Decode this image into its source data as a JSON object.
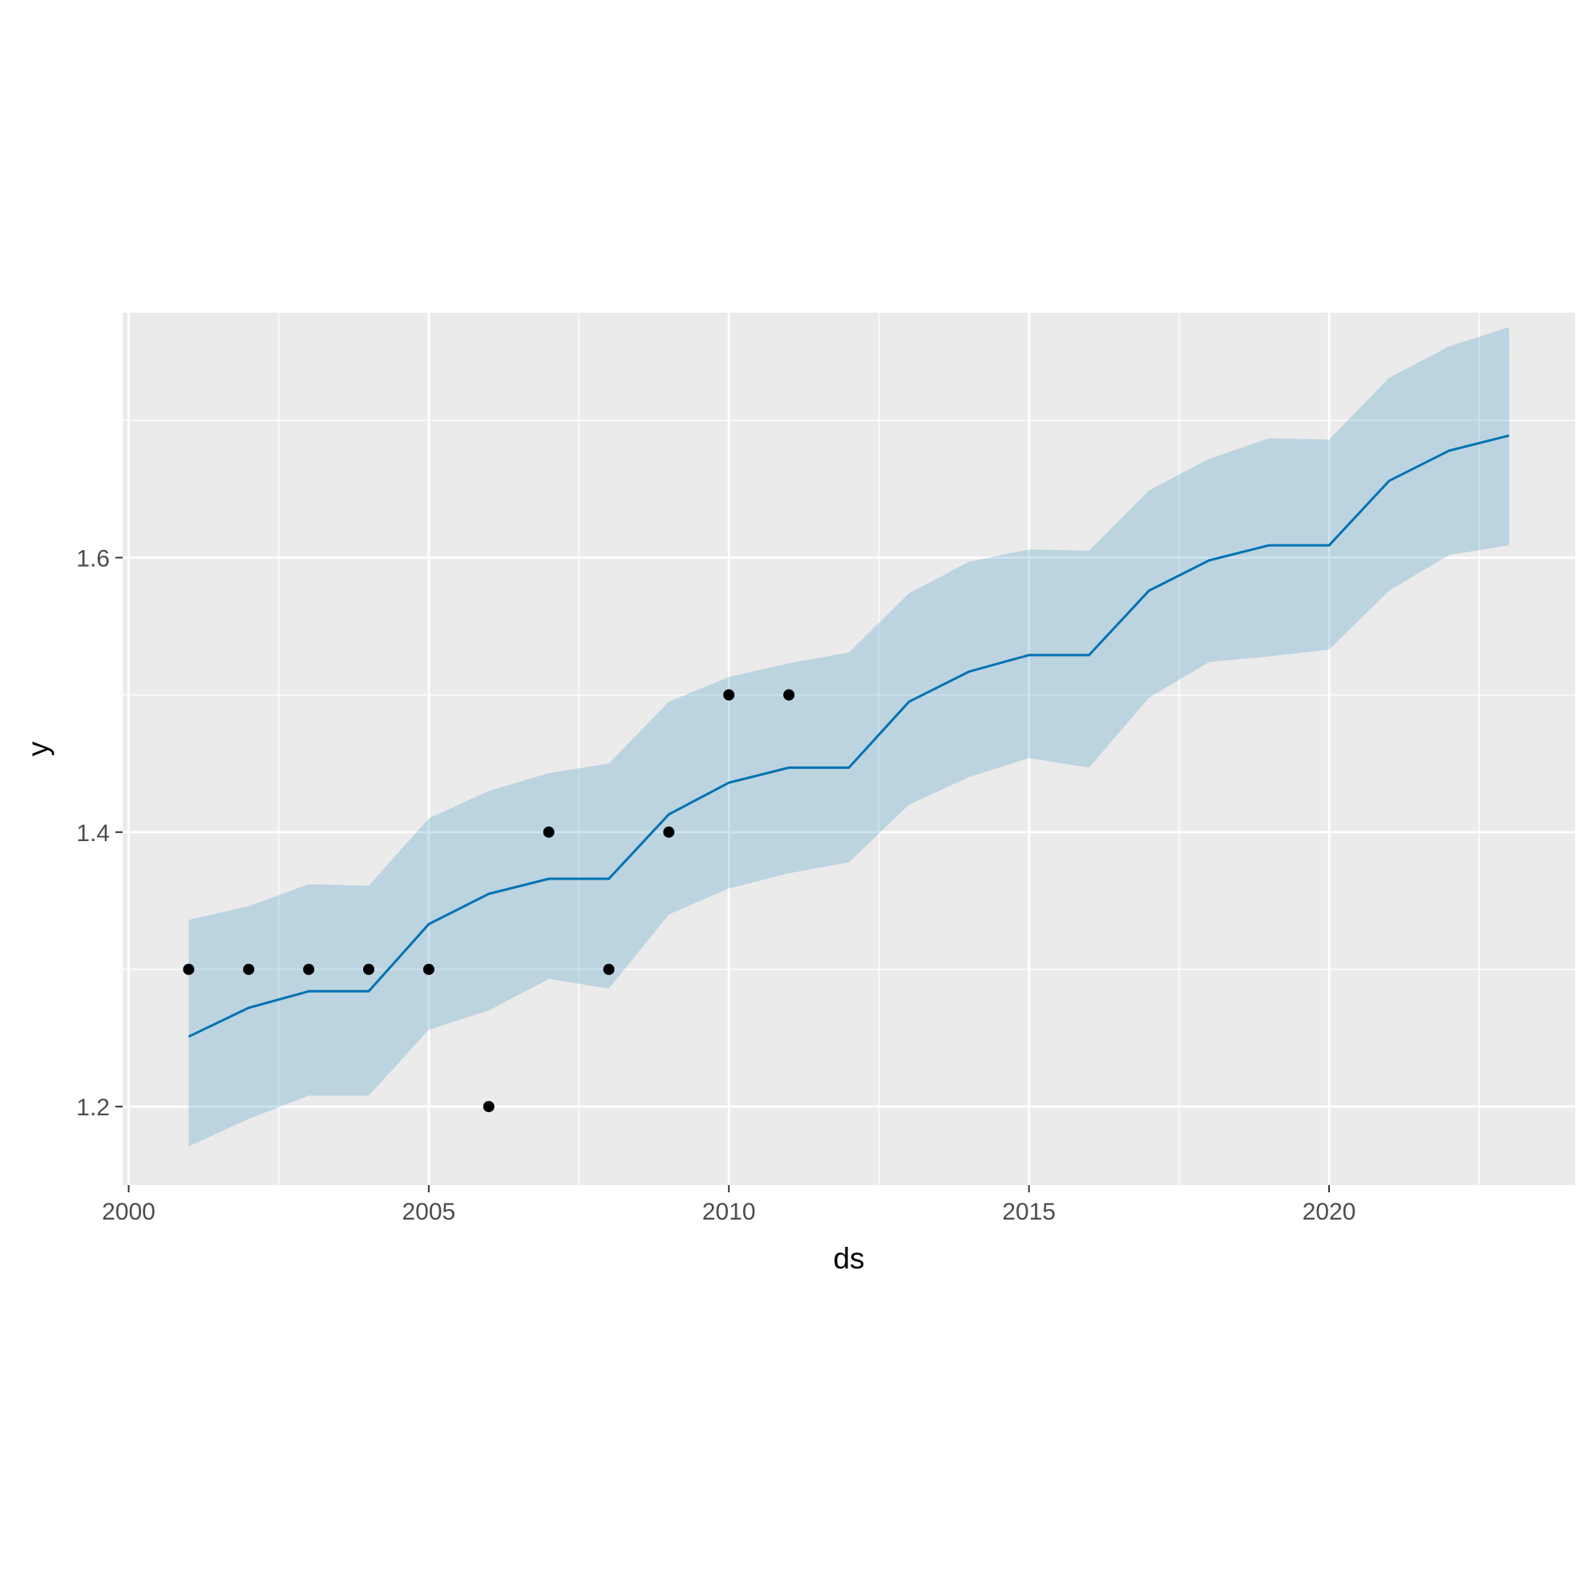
{
  "chart_data": {
    "type": "line",
    "title": "",
    "xlabel": "ds",
    "ylabel": "y",
    "xlim": [
      1999.9,
      2024.1
    ],
    "ylim": [
      1.1428,
      1.7785
    ],
    "x_ticks": [
      2000,
      2005,
      2010,
      2015,
      2020
    ],
    "x_minor_ticks": [
      2002.5,
      2007.5,
      2012.5,
      2017.5,
      2022.5
    ],
    "y_ticks": [
      1.2,
      1.4,
      1.6
    ],
    "y_tick_labels": [
      "1.2",
      "1.4",
      "1.6"
    ],
    "y_minor_ticks": [
      1.3,
      1.5,
      1.7
    ],
    "grid": true,
    "colors": {
      "panel_background": "#ebebeb",
      "grid": "#ffffff",
      "forecast_line": "#0072b2",
      "uncertainty_band": "#0072b2",
      "observed_points": "#000000"
    },
    "observed": {
      "x": [
        2001,
        2002,
        2003,
        2004,
        2005,
        2006,
        2007,
        2008,
        2009,
        2010,
        2011
      ],
      "y": [
        1.3,
        1.3,
        1.3,
        1.3,
        1.3,
        1.2,
        1.4,
        1.3,
        1.4,
        1.5,
        1.5
      ]
    },
    "forecast": {
      "x": [
        2001,
        2002,
        2003,
        2004,
        2005,
        2006,
        2007,
        2008,
        2009,
        2010,
        2011,
        2012,
        2013,
        2014,
        2015,
        2016,
        2017,
        2018,
        2019,
        2020,
        2021,
        2022,
        2023
      ],
      "yhat": [
        1.251,
        1.272,
        1.284,
        1.284,
        1.333,
        1.355,
        1.366,
        1.366,
        1.413,
        1.436,
        1.447,
        1.447,
        1.495,
        1.517,
        1.529,
        1.529,
        1.576,
        1.598,
        1.609,
        1.609,
        1.656,
        1.678,
        1.689
      ],
      "yhat_lower": [
        1.171,
        1.191,
        1.208,
        1.208,
        1.256,
        1.27,
        1.293,
        1.286,
        1.34,
        1.359,
        1.37,
        1.378,
        1.42,
        1.44,
        1.454,
        1.447,
        1.498,
        1.524,
        1.528,
        1.533,
        1.576,
        1.602,
        1.609
      ],
      "yhat_upper": [
        1.336,
        1.346,
        1.362,
        1.361,
        1.41,
        1.43,
        1.443,
        1.45,
        1.495,
        1.513,
        1.523,
        1.531,
        1.574,
        1.597,
        1.606,
        1.605,
        1.649,
        1.672,
        1.687,
        1.686,
        1.731,
        1.754,
        1.768
      ]
    }
  }
}
